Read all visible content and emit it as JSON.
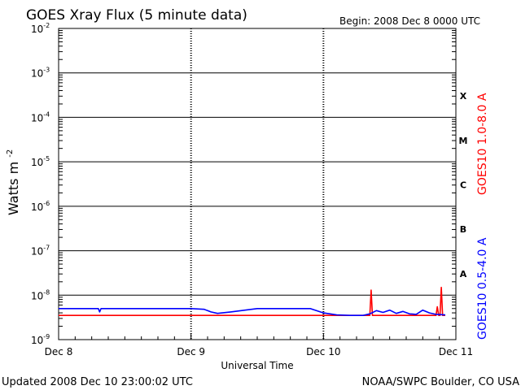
{
  "chart_data": {
    "type": "line",
    "title": "GOES Xray Flux (5 minute data)",
    "begin_text": "Begin:  2008 Dec 8 0000 UTC",
    "ylabel": "Watts m",
    "ylabel_sup": "-2",
    "xlabel": "Universal Time",
    "yscale": "log",
    "ylim": [
      1e-09,
      0.01
    ],
    "y_ticks": [
      {
        "base": "10",
        "exp": "-2"
      },
      {
        "base": "10",
        "exp": "-3"
      },
      {
        "base": "10",
        "exp": "-4"
      },
      {
        "base": "10",
        "exp": "-5"
      },
      {
        "base": "10",
        "exp": "-6"
      },
      {
        "base": "10",
        "exp": "-7"
      },
      {
        "base": "10",
        "exp": "-8"
      },
      {
        "base": "10",
        "exp": "-9"
      }
    ],
    "x_ticks": [
      "Dec 8",
      "Dec 9",
      "Dec 10",
      "Dec 11"
    ],
    "xlim_days": [
      0,
      3
    ],
    "class_labels": [
      "X",
      "M",
      "C",
      "B",
      "A"
    ],
    "grid": true,
    "series": [
      {
        "name": "GOES10 1.0-8.0 A",
        "color": "#ff0000",
        "x_days": [
          0.0,
          0.5,
          1.0,
          1.2,
          1.5,
          2.0,
          2.2,
          2.35,
          2.36,
          2.37,
          2.38,
          2.5,
          2.7,
          2.85,
          2.86,
          2.87,
          2.88,
          2.89,
          2.9,
          2.92
        ],
        "values": [
          3.5e-09,
          3.5e-09,
          3.5e-09,
          3.5e-09,
          3.5e-09,
          3.5e-09,
          3.5e-09,
          3.5e-09,
          1.3e-08,
          3.5e-09,
          3.5e-09,
          3.5e-09,
          3.5e-09,
          3.5e-09,
          5.5e-09,
          3.5e-09,
          3.5e-09,
          1.5e-08,
          3.5e-09,
          3.5e-09
        ]
      },
      {
        "name": "GOES10 0.5-4.0 A",
        "color": "#0000ff",
        "x_days": [
          0.0,
          0.25,
          0.3,
          0.31,
          0.32,
          0.5,
          0.8,
          1.0,
          1.1,
          1.15,
          1.2,
          1.3,
          1.5,
          1.7,
          1.9,
          2.0,
          2.1,
          2.2,
          2.3,
          2.35,
          2.4,
          2.45,
          2.5,
          2.55,
          2.6,
          2.65,
          2.7,
          2.75,
          2.8,
          2.85,
          2.92
        ],
        "values": [
          5e-09,
          5e-09,
          5e-09,
          4.2e-09,
          5e-09,
          5e-09,
          5e-09,
          5e-09,
          4.8e-09,
          4.2e-09,
          3.9e-09,
          4.2e-09,
          5e-09,
          5e-09,
          5e-09,
          4e-09,
          3.6e-09,
          3.5e-09,
          3.5e-09,
          3.8e-09,
          4.5e-09,
          4.1e-09,
          4.6e-09,
          3.9e-09,
          4.3e-09,
          3.8e-09,
          3.7e-09,
          4.6e-09,
          4e-09,
          3.7e-09,
          3.6e-09
        ]
      }
    ]
  },
  "footer": {
    "updated": "Updated 2008 Dec 10 23:00:02 UTC",
    "source": "NOAA/SWPC Boulder, CO USA"
  }
}
